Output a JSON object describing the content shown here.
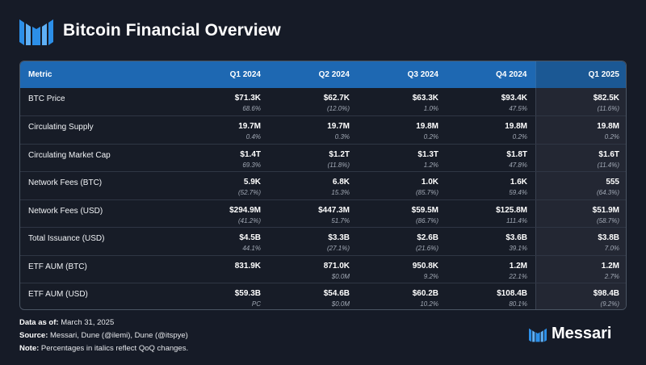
{
  "header": {
    "title": "Bitcoin Financial Overview",
    "logo_icon": "messari-logo-icon"
  },
  "table": {
    "columns": [
      "Metric",
      "Q1 2024",
      "Q2 2024",
      "Q3 2024",
      "Q4 2024",
      "Q1 2025"
    ],
    "rows": [
      {
        "metric": "BTC Price",
        "cells": [
          {
            "v": "$71.3K",
            "c": "68.6%"
          },
          {
            "v": "$62.7K",
            "c": "(12.0%)"
          },
          {
            "v": "$63.3K",
            "c": "1.0%"
          },
          {
            "v": "$93.4K",
            "c": "47.5%"
          },
          {
            "v": "$82.5K",
            "c": "(11.6%)"
          }
        ]
      },
      {
        "metric": "Circulating Supply",
        "cells": [
          {
            "v": "19.7M",
            "c": "0.4%"
          },
          {
            "v": "19.7M",
            "c": "0.3%"
          },
          {
            "v": "19.8M",
            "c": "0.2%"
          },
          {
            "v": "19.8M",
            "c": "0.2%"
          },
          {
            "v": "19.8M",
            "c": "0.2%"
          }
        ]
      },
      {
        "metric": "Circulating Market Cap",
        "cells": [
          {
            "v": "$1.4T",
            "c": "69.3%"
          },
          {
            "v": "$1.2T",
            "c": "(11.8%)"
          },
          {
            "v": "$1.3T",
            "c": "1.2%"
          },
          {
            "v": "$1.8T",
            "c": "47.8%"
          },
          {
            "v": "$1.6T",
            "c": "(11.4%)"
          }
        ]
      },
      {
        "metric": "Network Fees (BTC)",
        "cells": [
          {
            "v": "5.9K",
            "c": "(52.7%)"
          },
          {
            "v": "6.8K",
            "c": "15.3%"
          },
          {
            "v": "1.0K",
            "c": "(85.7%)"
          },
          {
            "v": "1.6K",
            "c": "59.4%"
          },
          {
            "v": "555",
            "c": "(64.3%)"
          }
        ]
      },
      {
        "metric": "Network Fees (USD)",
        "cells": [
          {
            "v": "$294.9M",
            "c": "(41.2%)"
          },
          {
            "v": "$447.3M",
            "c": "51.7%"
          },
          {
            "v": "$59.5M",
            "c": "(86.7%)"
          },
          {
            "v": "$125.8M",
            "c": "111.4%"
          },
          {
            "v": "$51.9M",
            "c": "(58.7%)"
          }
        ]
      },
      {
        "metric": "Total Issuance (USD)",
        "cells": [
          {
            "v": "$4.5B",
            "c": "44.1%"
          },
          {
            "v": "$3.3B",
            "c": "(27.1%)"
          },
          {
            "v": "$2.6B",
            "c": "(21.6%)"
          },
          {
            "v": "$3.6B",
            "c": "39.1%"
          },
          {
            "v": "$3.8B",
            "c": "7.0%"
          }
        ]
      },
      {
        "metric": "ETF AUM (BTC)",
        "cells": [
          {
            "v": "831.9K",
            "c": ""
          },
          {
            "v": "871.0K",
            "c": "$0.0M"
          },
          {
            "v": "950.8K",
            "c": "9.2%"
          },
          {
            "v": "1.2M",
            "c": "22.1%"
          },
          {
            "v": "1.2M",
            "c": "2.7%"
          }
        ]
      },
      {
        "metric": "ETF AUM (USD)",
        "cells": [
          {
            "v": "$59.3B",
            "c": "PC"
          },
          {
            "v": "$54.6B",
            "c": "$0.0M"
          },
          {
            "v": "$60.2B",
            "c": "10.2%"
          },
          {
            "v": "$108.4B",
            "c": "80.1%"
          },
          {
            "v": "$98.4B",
            "c": "(9.2%)"
          }
        ]
      }
    ]
  },
  "footer": {
    "data_label": "Data as of:",
    "data_value": "March 31, 2025",
    "source_label": "Source:",
    "source_value": "Messari, Dune (@ilemi), Dune (@itspye)",
    "note_label": "Note:",
    "note_value": "Percentages in italics reflect QoQ changes."
  },
  "brand": {
    "name": "Messari",
    "logo_icon": "messari-logo-icon"
  },
  "colors": {
    "background": "#161b27",
    "header_blue": "#1e68b2",
    "accent": "#2c8fe8"
  }
}
